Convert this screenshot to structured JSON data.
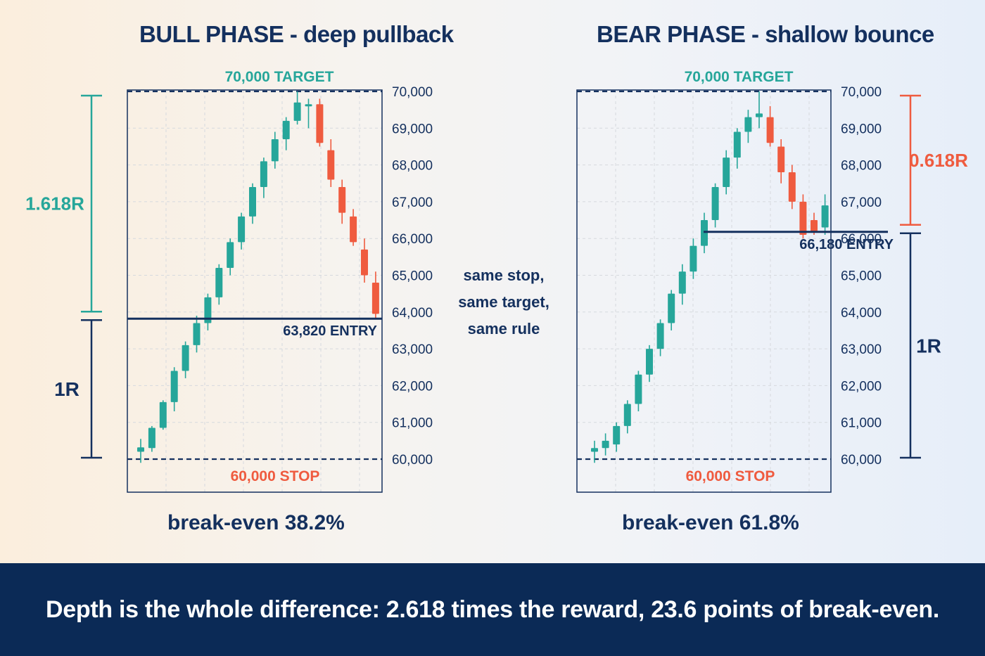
{
  "bull_title": "BULL PHASE - deep pullback",
  "bear_title": "BEAR PHASE - shallow bounce",
  "center_note": [
    "same stop,",
    "same target,",
    "same rule"
  ],
  "banner": "Depth is the whole difference: 2.618 times the reward, 23.6 points of break-even.",
  "colors": {
    "up": "#26a69a",
    "down": "#ef5b3f",
    "navy": "#14305e",
    "target": "#26a69a",
    "stop": "#ef5b3f"
  },
  "chart_data": [
    {
      "type": "candlestick",
      "title": "BULL PHASE - deep pullback",
      "ylim": [
        60000,
        70000
      ],
      "yticks": [
        "60,000",
        "61,000",
        "62,000",
        "63,000",
        "64,000",
        "65,000",
        "66,000",
        "67,000",
        "68,000",
        "69,000",
        "70,000"
      ],
      "target_label": "70,000 TARGET",
      "stop_label": "60,000 STOP",
      "entry_label": "63,820 ENTRY",
      "entry": 63820,
      "target": 70000,
      "stop": 60000,
      "reward_label": "1.618R",
      "risk_label": "1R",
      "breakeven_label": "break-even 38.2%",
      "candles": [
        {
          "o": 60200,
          "h": 60550,
          "l": 59900,
          "c": 60320
        },
        {
          "o": 60300,
          "h": 60900,
          "l": 60200,
          "c": 60850
        },
        {
          "o": 60850,
          "h": 61600,
          "l": 60800,
          "c": 61550
        },
        {
          "o": 61550,
          "h": 62500,
          "l": 61300,
          "c": 62400
        },
        {
          "o": 62400,
          "h": 63200,
          "l": 62200,
          "c": 63100
        },
        {
          "o": 63100,
          "h": 63900,
          "l": 62900,
          "c": 63700
        },
        {
          "o": 63700,
          "h": 64500,
          "l": 63500,
          "c": 64400
        },
        {
          "o": 64400,
          "h": 65300,
          "l": 64200,
          "c": 65200
        },
        {
          "o": 65200,
          "h": 66000,
          "l": 65000,
          "c": 65900
        },
        {
          "o": 65900,
          "h": 66700,
          "l": 65700,
          "c": 66600
        },
        {
          "o": 66600,
          "h": 67500,
          "l": 66400,
          "c": 67400
        },
        {
          "o": 67400,
          "h": 68200,
          "l": 67100,
          "c": 68100
        },
        {
          "o": 68100,
          "h": 68900,
          "l": 67900,
          "c": 68700
        },
        {
          "o": 68700,
          "h": 69300,
          "l": 68400,
          "c": 69200
        },
        {
          "o": 69200,
          "h": 70000,
          "l": 69100,
          "c": 69700
        },
        {
          "o": 69650,
          "h": 69800,
          "l": 69000,
          "c": 69650
        },
        {
          "o": 69650,
          "h": 69800,
          "l": 68500,
          "c": 68600
        },
        {
          "o": 68400,
          "h": 68700,
          "l": 67400,
          "c": 67600
        },
        {
          "o": 67400,
          "h": 67600,
          "l": 66400,
          "c": 66700
        },
        {
          "o": 66600,
          "h": 66800,
          "l": 65800,
          "c": 65900
        },
        {
          "o": 65700,
          "h": 66000,
          "l": 64800,
          "c": 65000
        },
        {
          "o": 64800,
          "h": 65100,
          "l": 63800,
          "c": 63950
        }
      ]
    },
    {
      "type": "candlestick",
      "title": "BEAR PHASE - shallow bounce",
      "ylim": [
        60000,
        70000
      ],
      "yticks": [
        "60,000",
        "61,000",
        "62,000",
        "63,000",
        "64,000",
        "65,000",
        "66,000",
        "67,000",
        "68,000",
        "69,000",
        "70,000"
      ],
      "target_label": "70,000 TARGET",
      "stop_label": "60,000 STOP",
      "entry_label": "66,180 ENTRY",
      "entry": 66180,
      "target": 70000,
      "stop": 60000,
      "reward_label": "0.618R",
      "risk_label": "1R",
      "breakeven_label": "break-even 61.8%",
      "candles": [
        {
          "o": 60200,
          "h": 60500,
          "l": 59900,
          "c": 60300
        },
        {
          "o": 60300,
          "h": 60700,
          "l": 60100,
          "c": 60500
        },
        {
          "o": 60400,
          "h": 61000,
          "l": 60200,
          "c": 60900
        },
        {
          "o": 60900,
          "h": 61600,
          "l": 60700,
          "c": 61500
        },
        {
          "o": 61500,
          "h": 62400,
          "l": 61300,
          "c": 62300
        },
        {
          "o": 62300,
          "h": 63100,
          "l": 62100,
          "c": 63000
        },
        {
          "o": 63000,
          "h": 63800,
          "l": 62800,
          "c": 63700
        },
        {
          "o": 63700,
          "h": 64600,
          "l": 63500,
          "c": 64500
        },
        {
          "o": 64500,
          "h": 65300,
          "l": 64200,
          "c": 65100
        },
        {
          "o": 65100,
          "h": 66000,
          "l": 64900,
          "c": 65800
        },
        {
          "o": 65800,
          "h": 66700,
          "l": 65600,
          "c": 66500
        },
        {
          "o": 66500,
          "h": 67500,
          "l": 66300,
          "c": 67400
        },
        {
          "o": 67400,
          "h": 68400,
          "l": 67200,
          "c": 68200
        },
        {
          "o": 68200,
          "h": 69000,
          "l": 67900,
          "c": 68900
        },
        {
          "o": 68900,
          "h": 69500,
          "l": 68600,
          "c": 69300
        },
        {
          "o": 69300,
          "h": 70000,
          "l": 69000,
          "c": 69400
        },
        {
          "o": 69300,
          "h": 69600,
          "l": 68500,
          "c": 68600
        },
        {
          "o": 68500,
          "h": 68700,
          "l": 67500,
          "c": 67800
        },
        {
          "o": 67800,
          "h": 68000,
          "l": 66800,
          "c": 67000
        },
        {
          "o": 67000,
          "h": 67200,
          "l": 66000,
          "c": 66100
        },
        {
          "o": 66500,
          "h": 66700,
          "l": 66100,
          "c": 66200
        },
        {
          "o": 66300,
          "h": 67200,
          "l": 66100,
          "c": 66900
        }
      ]
    }
  ]
}
